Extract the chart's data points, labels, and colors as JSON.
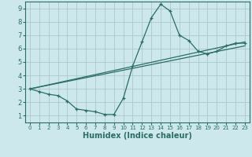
{
  "line1_x": [
    0,
    1,
    2,
    3,
    4,
    5,
    6,
    7,
    8,
    9,
    10,
    11,
    12,
    13,
    14,
    15,
    16,
    17,
    18,
    19,
    20,
    21,
    22,
    23
  ],
  "line1_y": [
    3.0,
    2.8,
    2.6,
    2.5,
    2.1,
    1.5,
    1.4,
    1.3,
    1.1,
    1.1,
    2.3,
    4.7,
    6.5,
    8.3,
    9.3,
    8.8,
    7.0,
    6.6,
    5.8,
    5.6,
    5.8,
    6.2,
    6.4,
    6.4
  ],
  "line2_x": [
    0,
    23
  ],
  "line2_y": [
    3.0,
    6.5
  ],
  "line3_x": [
    0,
    23
  ],
  "line3_y": [
    3.0,
    6.2
  ],
  "color": "#2a6e62",
  "bg_color": "#cde8ec",
  "grid_color": "#adc8cc",
  "xlabel": "Humidex (Indice chaleur)",
  "xlim": [
    -0.5,
    23.5
  ],
  "ylim": [
    0.5,
    9.5
  ],
  "xticks": [
    0,
    1,
    2,
    3,
    4,
    5,
    6,
    7,
    8,
    9,
    10,
    11,
    12,
    13,
    14,
    15,
    16,
    17,
    18,
    19,
    20,
    21,
    22,
    23
  ],
  "yticks": [
    1,
    2,
    3,
    4,
    5,
    6,
    7,
    8,
    9
  ],
  "xlabel_fontsize": 7,
  "tick_fontsize_x": 5,
  "tick_fontsize_y": 6
}
